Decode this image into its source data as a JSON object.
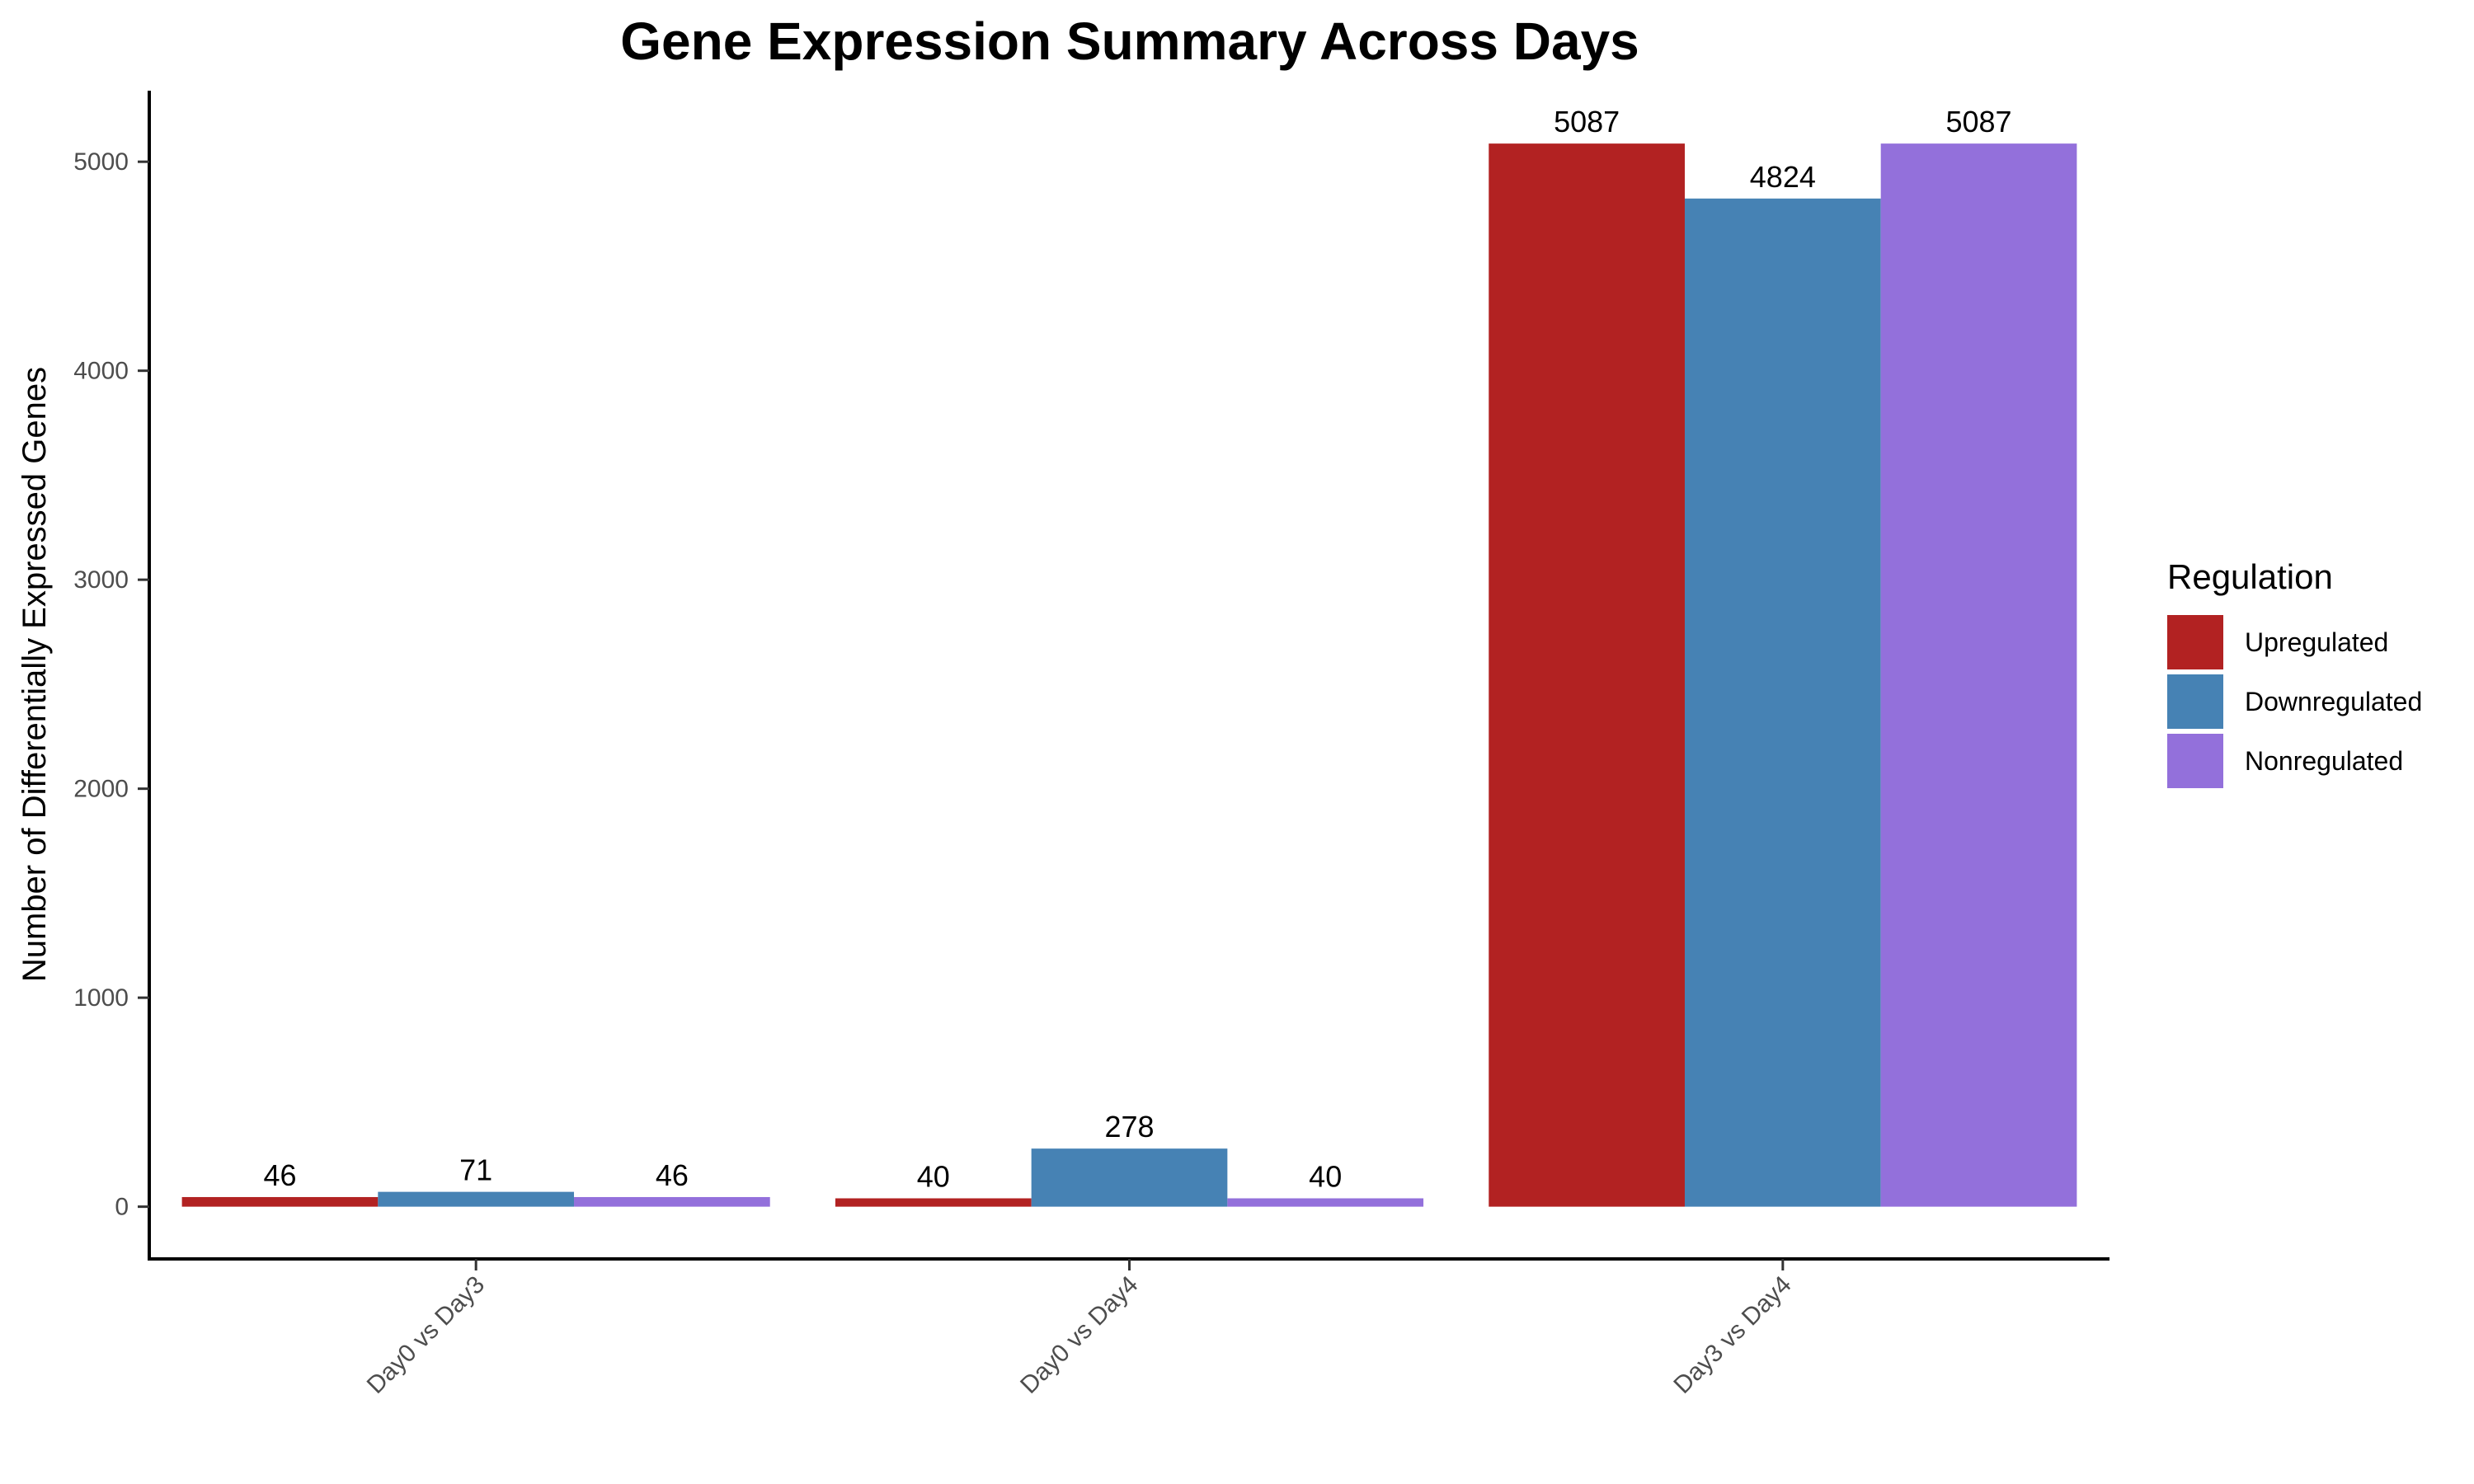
{
  "chart_data": {
    "type": "bar",
    "title": "Gene Expression Summary Across Days",
    "xlabel": "",
    "ylabel": "Number of Differentially Expressed Genes",
    "categories": [
      "Day0 vs Day3",
      "Day0 vs Day4",
      "Day3 vs Day4"
    ],
    "series": [
      {
        "name": "Upregulated",
        "color": "#B22222",
        "values": [
          46,
          40,
          5087
        ]
      },
      {
        "name": "Downregulated",
        "color": "#4682B4",
        "values": [
          71,
          278,
          4824
        ]
      },
      {
        "name": "Nonregulated",
        "color": "#9370DB",
        "values": [
          46,
          40,
          5087
        ]
      }
    ],
    "y_ticks": [
      0,
      1000,
      2000,
      3000,
      4000,
      5000
    ],
    "ylim": [
      -250,
      5340
    ],
    "grid": false,
    "legend": {
      "title": "Regulation",
      "placement": "right"
    },
    "data_labels": true
  }
}
